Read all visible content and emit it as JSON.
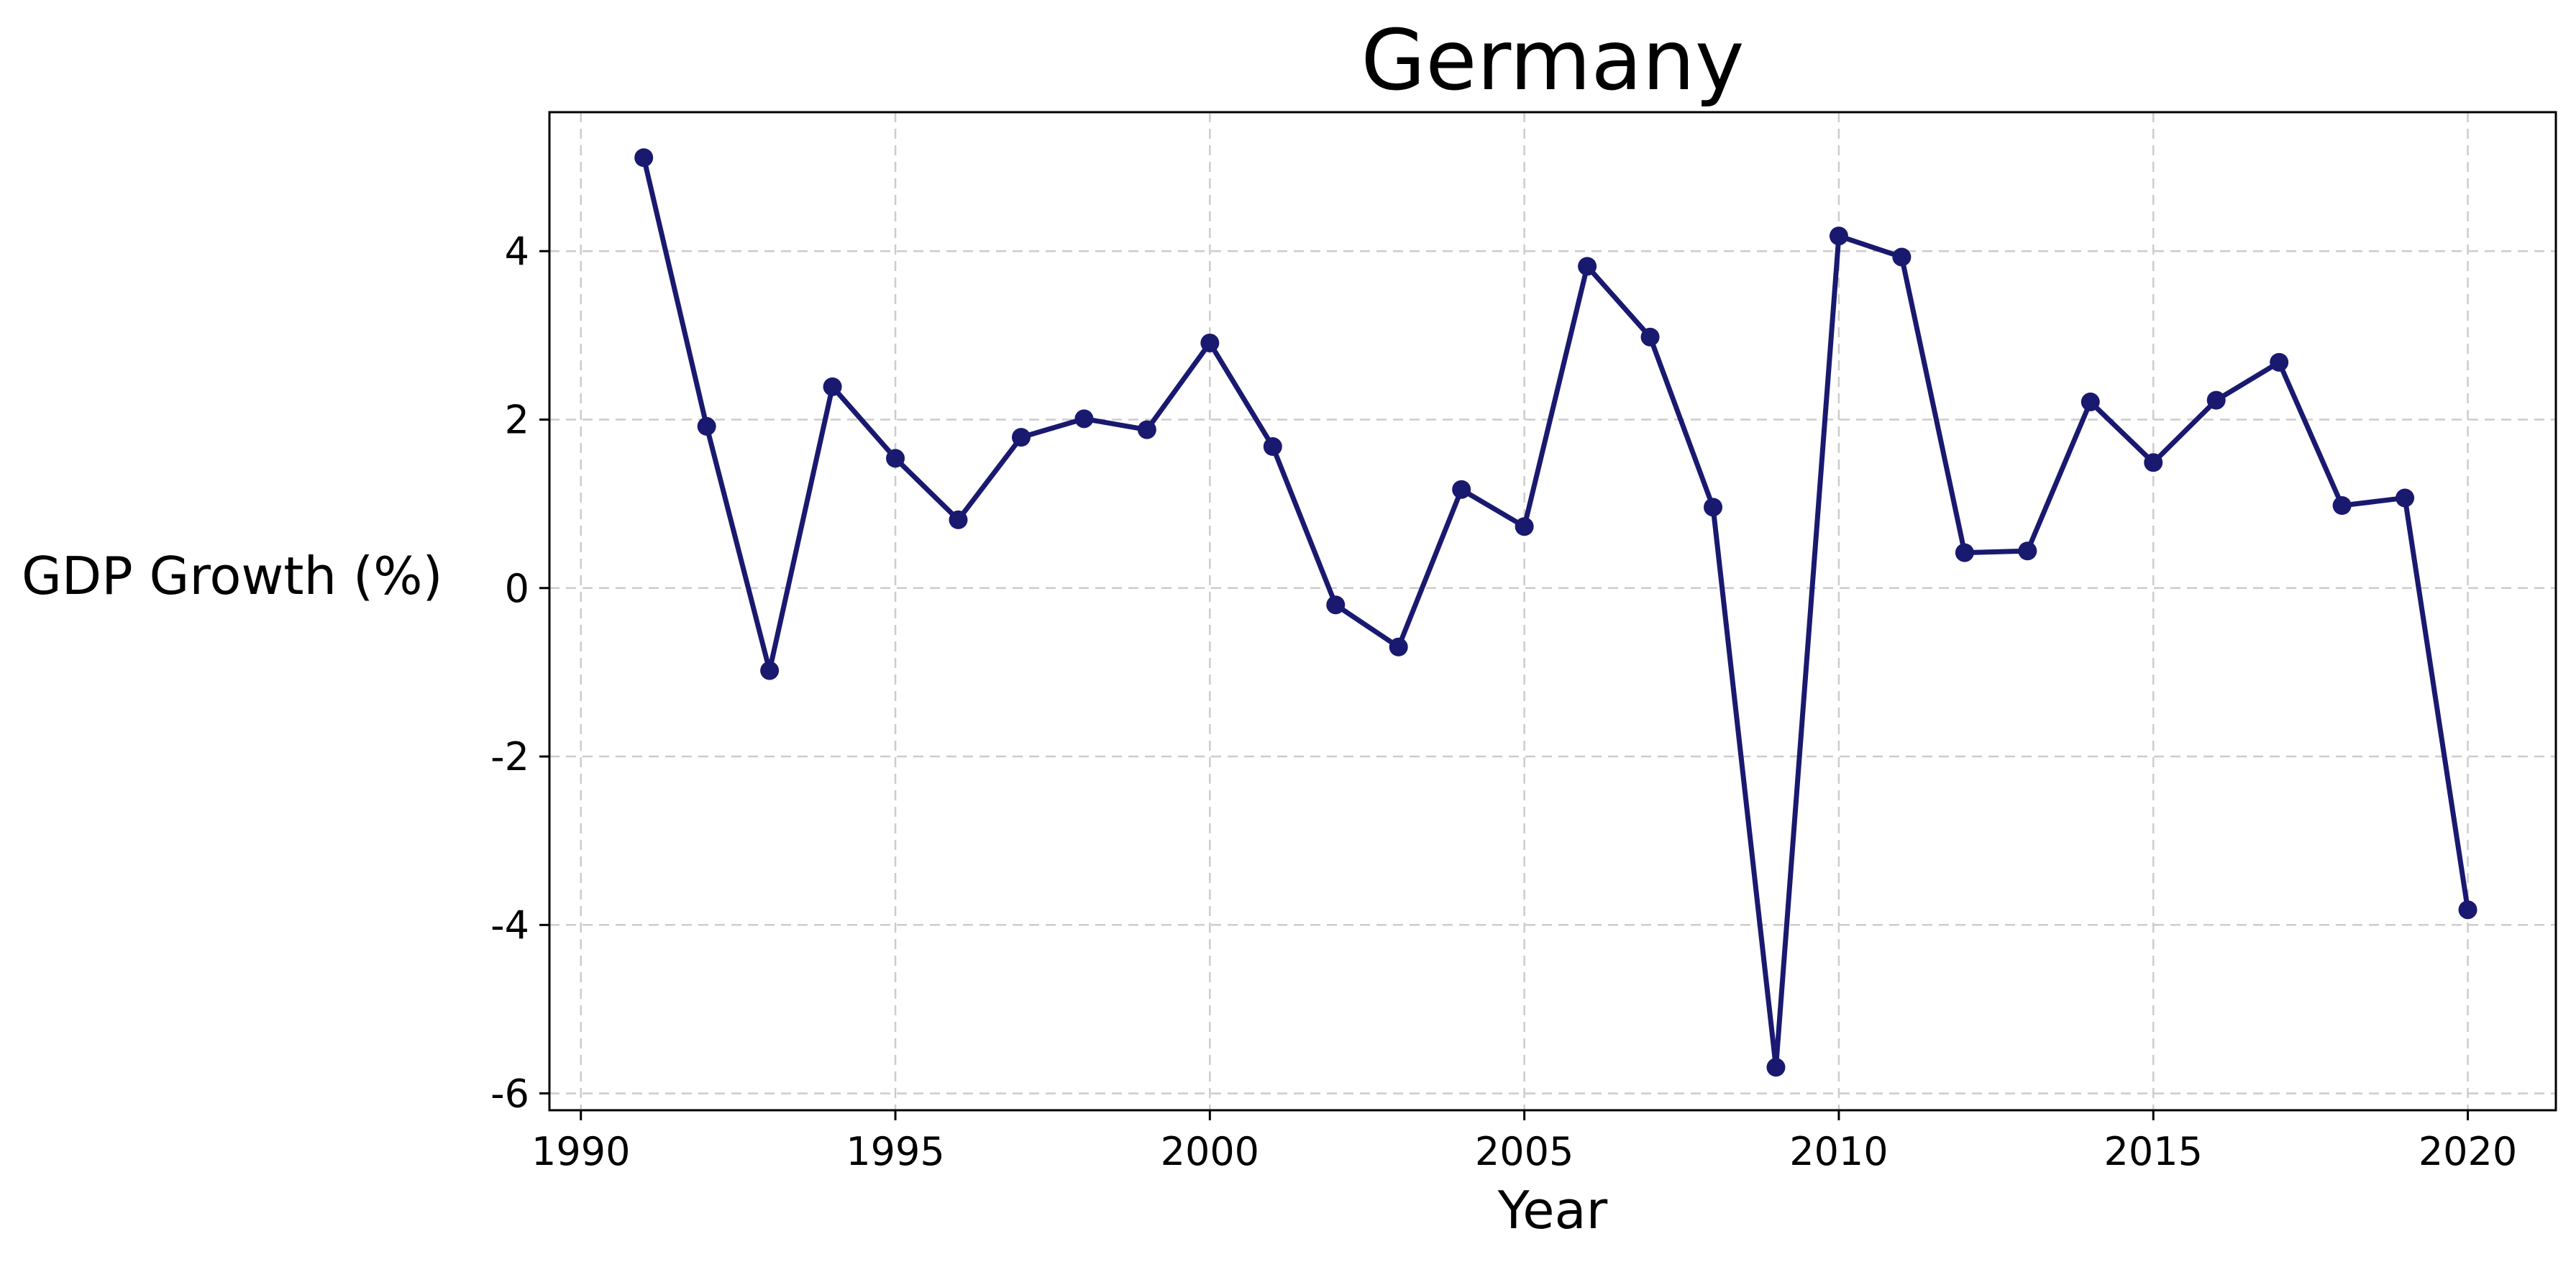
{
  "chart_data": {
    "type": "line",
    "title": "Germany",
    "xlabel": "Year",
    "ylabel": "GDP Growth (%)",
    "xlim": [
      1989.5,
      2021.4
    ],
    "ylim": [
      -6.2,
      5.65
    ],
    "xticks": [
      1990,
      1995,
      2000,
      2005,
      2010,
      2015,
      2020
    ],
    "yticks": [
      -6,
      -4,
      -2,
      0,
      2,
      4
    ],
    "ytick_labels": [
      "-6",
      "-4",
      "-2",
      "0",
      "2",
      "4"
    ],
    "grid": true,
    "line_color": "#191970",
    "series": [
      {
        "x": [
          1991,
          1992,
          1993,
          1994,
          1995,
          1996,
          1997,
          1998,
          1999,
          2000,
          2001,
          2002,
          2003,
          2004,
          2005,
          2006,
          2007,
          2008,
          2009,
          2010,
          2011,
          2012,
          2013,
          2014,
          2015,
          2016,
          2017,
          2018,
          2019,
          2020
        ],
        "y": [
          5.11,
          1.92,
          -0.98,
          2.39,
          1.54,
          0.81,
          1.79,
          2.01,
          1.88,
          2.91,
          1.68,
          -0.2,
          -0.7,
          1.17,
          0.73,
          3.82,
          2.98,
          0.96,
          -5.69,
          4.18,
          3.93,
          0.42,
          0.44,
          2.21,
          1.49,
          2.23,
          2.68,
          0.98,
          1.07,
          -3.82
        ]
      }
    ]
  }
}
